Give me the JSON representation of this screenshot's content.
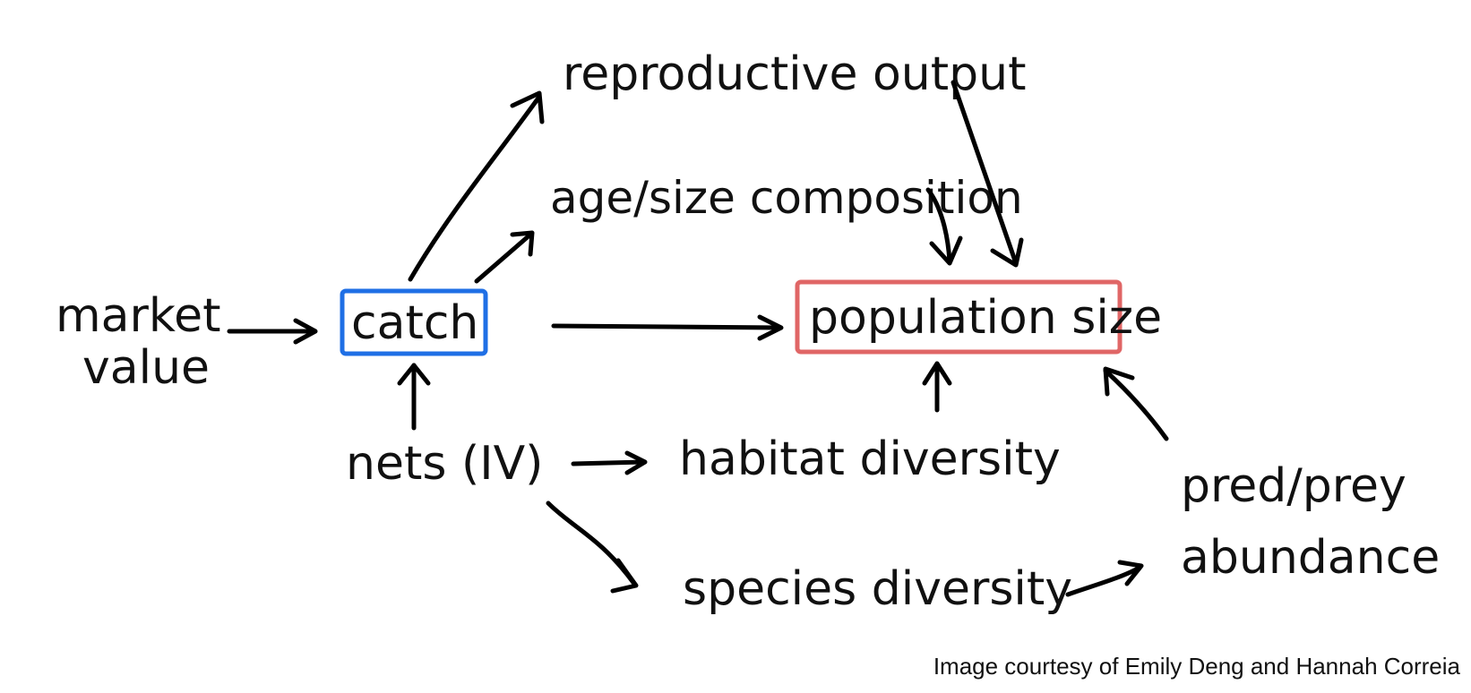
{
  "nodes": {
    "market_value_line1": "market",
    "market_value_line2": "value",
    "catch": "catch",
    "reproductive_output": "reproductive output",
    "age_size_composition": "age/size composition",
    "population_size": "population size",
    "nets_iv": "nets (IV)",
    "habitat_diversity": "habitat diversity",
    "species_diversity": "species diversity",
    "pred_prey_line1": "pred/prey",
    "pred_prey_line2": "abundance"
  },
  "colors": {
    "catch_box": "#1f6fe5",
    "population_box": "#e06666",
    "ink": "#000000"
  },
  "edges": [
    {
      "from": "market value",
      "to": "catch"
    },
    {
      "from": "catch",
      "to": "reproductive output"
    },
    {
      "from": "catch",
      "to": "age/size composition"
    },
    {
      "from": "catch",
      "to": "population size"
    },
    {
      "from": "reproductive output",
      "to": "population size"
    },
    {
      "from": "age/size composition",
      "to": "population size"
    },
    {
      "from": "nets (IV)",
      "to": "catch"
    },
    {
      "from": "nets (IV)",
      "to": "habitat diversity"
    },
    {
      "from": "nets (IV)",
      "to": "species diversity"
    },
    {
      "from": "habitat diversity",
      "to": "population size"
    },
    {
      "from": "species diversity",
      "to": "pred/prey abundance"
    },
    {
      "from": "pred/prey abundance",
      "to": "population size"
    }
  ],
  "credit": "Image courtesy of Emily Deng and Hannah Correia"
}
